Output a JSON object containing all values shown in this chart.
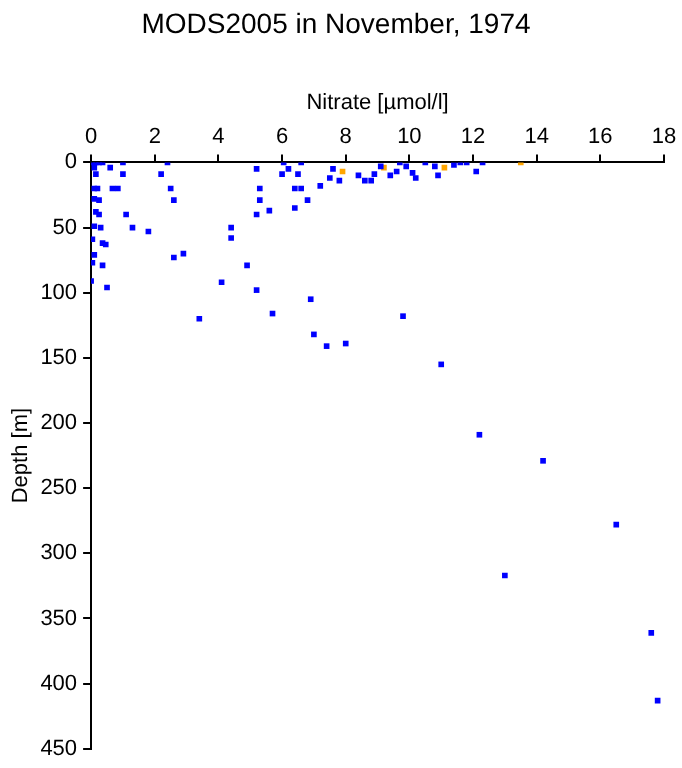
{
  "chart_data": {
    "type": "scatter",
    "title": "MODS2005 in November, 1974",
    "xlabel": "Nitrate [µmol/l]",
    "ylabel": "Depth [m]",
    "xlim": [
      0,
      18
    ],
    "xticks": [
      0,
      2,
      4,
      6,
      8,
      10,
      12,
      14,
      16,
      18
    ],
    "ylim": [
      450,
      0
    ],
    "yticks": [
      0,
      50,
      100,
      150,
      200,
      250,
      300,
      350,
      400,
      450
    ],
    "grid": false,
    "legend": false,
    "marker": "square",
    "series": [
      {
        "color": "#0000ff",
        "x": [
          0.04,
          0.15,
          0.25,
          0.36,
          1.0,
          2.4,
          6.05,
          6.6,
          9.7,
          10.5,
          11.6,
          11.8,
          12.3,
          0.1,
          0.15,
          0.1,
          0.2,
          0.1,
          0.25,
          0.15,
          0.25,
          0.1,
          0.3,
          0.04,
          0.36,
          0.46,
          0.1,
          0.04,
          0.36,
          0,
          0.5,
          0.6,
          0.67,
          0.84,
          1.0,
          1.1,
          1.3,
          1.8,
          2.2,
          2.5,
          2.6,
          2.6,
          2.9,
          3.4,
          4.1,
          4.4,
          4.4,
          4.9,
          5.2,
          5.2,
          5.3,
          5.3,
          5.2,
          5.6,
          5.7,
          6.0,
          6.2,
          6.4,
          6.4,
          6.6,
          6.5,
          6.8,
          6.9,
          7.0,
          7.4,
          8.0,
          7.2,
          7.5,
          7.6,
          7.8,
          8.4,
          8.6,
          8.8,
          8.9,
          9.1,
          9.4,
          9.6,
          9.9,
          10.1,
          10.2,
          10.8,
          10.9,
          11.4,
          12.1,
          9.8,
          11.0,
          12.2,
          14.2,
          16.5,
          13.0,
          17.6,
          17.8
        ],
        "values": [
          0,
          0,
          0,
          0,
          0,
          0,
          0,
          0,
          0,
          0,
          0,
          0,
          0,
          4,
          9,
          20,
          20,
          28,
          29,
          38,
          40,
          49,
          50,
          59,
          62,
          63,
          71,
          77,
          79,
          91,
          96,
          4,
          20,
          20,
          9,
          40,
          50,
          53,
          9,
          20,
          29,
          73,
          70,
          120,
          92,
          50,
          58,
          79,
          98,
          5,
          20,
          29,
          40,
          37,
          116,
          9,
          5,
          20,
          35,
          20,
          9,
          29,
          105,
          132,
          141,
          139,
          18,
          12,
          5,
          14,
          10,
          14,
          14,
          9,
          3,
          10,
          7,
          3,
          8,
          12,
          3,
          10,
          2,
          7,
          118,
          155,
          209,
          229,
          278,
          317,
          361,
          413
        ]
      },
      {
        "color": "#ffa500",
        "x": [
          7.9,
          9.2,
          11.1,
          13.5
        ],
        "values": [
          7,
          4,
          4,
          0
        ]
      }
    ]
  }
}
